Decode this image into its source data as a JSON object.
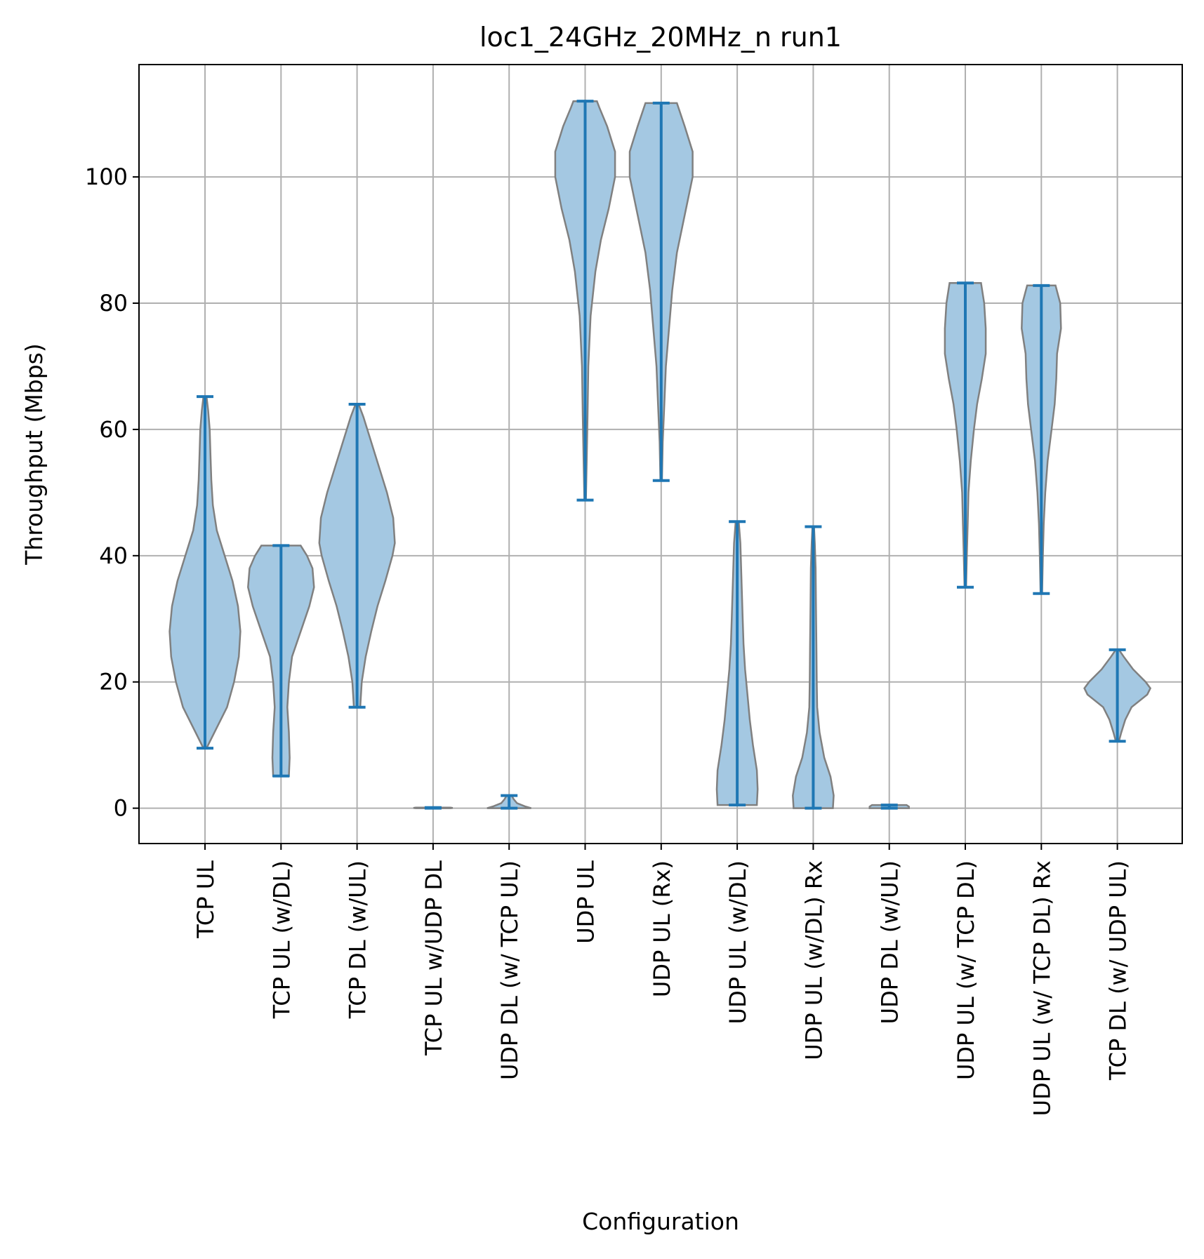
{
  "chart_data": {
    "type": "violin",
    "title": "loc1_24GHz_20MHz_n run1",
    "xlabel": "Configuration",
    "ylabel": "Throughput (Mbps)",
    "ylim": [
      -5.6,
      117.8
    ],
    "yticks": [
      0,
      20,
      40,
      60,
      80,
      100
    ],
    "grid": true,
    "colors": {
      "violin_fill": "#a4c8e2",
      "violin_edge": "#808080",
      "stats": "#1f77b4",
      "grid": "#b0b0b0"
    },
    "categories": [
      "TCP  UL",
      "TCP UL (w/DL)",
      "TCP DL (w/UL)",
      "TCP  UL w/UDP DL",
      "UDP DL (w/ TCP UL)",
      "UDP  UL",
      "UDP  UL (Rx)",
      "UDP UL (w/DL)",
      "UDP UL (w/DL) Rx",
      "UDP DL (w/UL)",
      "UDP UL (w/ TCP DL)",
      "UDP UL (w/ TCP DL) Rx",
      "TCP DL (w/ UDP UL)"
    ],
    "series": [
      {
        "min": 9.5,
        "max": 65.2,
        "density": [
          [
            9.5,
            0.02
          ],
          [
            12,
            0.12
          ],
          [
            16,
            0.28
          ],
          [
            20,
            0.37
          ],
          [
            24,
            0.43
          ],
          [
            28,
            0.45
          ],
          [
            32,
            0.42
          ],
          [
            36,
            0.35
          ],
          [
            40,
            0.25
          ],
          [
            44,
            0.15
          ],
          [
            48,
            0.1
          ],
          [
            52,
            0.08
          ],
          [
            56,
            0.07
          ],
          [
            60,
            0.06
          ],
          [
            63,
            0.04
          ],
          [
            65.2,
            0.02
          ]
        ]
      },
      {
        "min": 5.1,
        "max": 41.6,
        "density": [
          [
            5.1,
            0.1
          ],
          [
            8,
            0.11
          ],
          [
            12,
            0.1
          ],
          [
            16,
            0.08
          ],
          [
            20,
            0.1
          ],
          [
            24,
            0.14
          ],
          [
            28,
            0.25
          ],
          [
            32,
            0.36
          ],
          [
            35,
            0.42
          ],
          [
            38,
            0.4
          ],
          [
            40,
            0.33
          ],
          [
            41.6,
            0.25
          ]
        ]
      },
      {
        "min": 16.0,
        "max": 64.0,
        "density": [
          [
            16,
            0.04
          ],
          [
            20,
            0.06
          ],
          [
            24,
            0.11
          ],
          [
            28,
            0.18
          ],
          [
            32,
            0.26
          ],
          [
            36,
            0.36
          ],
          [
            40,
            0.45
          ],
          [
            42,
            0.48
          ],
          [
            46,
            0.46
          ],
          [
            50,
            0.38
          ],
          [
            54,
            0.28
          ],
          [
            58,
            0.18
          ],
          [
            62,
            0.08
          ],
          [
            64,
            0.02
          ]
        ]
      },
      {
        "min": 0.0,
        "max": 0.1,
        "density": [
          [
            0.0,
            0.22
          ],
          [
            0.05,
            0.25
          ],
          [
            0.1,
            0.22
          ]
        ]
      },
      {
        "min": 0.0,
        "max": 2.0,
        "density": [
          [
            0.0,
            0.28
          ],
          [
            0.3,
            0.2
          ],
          [
            0.8,
            0.1
          ],
          [
            1.4,
            0.06
          ],
          [
            2.0,
            0.03
          ]
        ]
      },
      {
        "min": 48.8,
        "max": 112.0,
        "density": [
          [
            48.8,
            0.01
          ],
          [
            55,
            0.02
          ],
          [
            62,
            0.03
          ],
          [
            70,
            0.04
          ],
          [
            78,
            0.07
          ],
          [
            85,
            0.13
          ],
          [
            90,
            0.2
          ],
          [
            95,
            0.3
          ],
          [
            100,
            0.38
          ],
          [
            104,
            0.38
          ],
          [
            108,
            0.28
          ],
          [
            111,
            0.18
          ],
          [
            112,
            0.15
          ]
        ]
      },
      {
        "min": 51.9,
        "max": 111.7,
        "density": [
          [
            51.9,
            0.01
          ],
          [
            58,
            0.02
          ],
          [
            64,
            0.04
          ],
          [
            70,
            0.06
          ],
          [
            76,
            0.1
          ],
          [
            82,
            0.14
          ],
          [
            88,
            0.2
          ],
          [
            94,
            0.3
          ],
          [
            100,
            0.4
          ],
          [
            104,
            0.4
          ],
          [
            108,
            0.3
          ],
          [
            111.7,
            0.2
          ]
        ]
      },
      {
        "min": 0.5,
        "max": 45.4,
        "density": [
          [
            0.5,
            0.25
          ],
          [
            3,
            0.26
          ],
          [
            6,
            0.25
          ],
          [
            10,
            0.2
          ],
          [
            14,
            0.16
          ],
          [
            18,
            0.13
          ],
          [
            22,
            0.1
          ],
          [
            26,
            0.08
          ],
          [
            30,
            0.07
          ],
          [
            34,
            0.06
          ],
          [
            38,
            0.05
          ],
          [
            42,
            0.04
          ],
          [
            45.4,
            0.02
          ]
        ]
      },
      {
        "min": 0.0,
        "max": 44.6,
        "density": [
          [
            0.0,
            0.25
          ],
          [
            2,
            0.26
          ],
          [
            5,
            0.22
          ],
          [
            8,
            0.14
          ],
          [
            12,
            0.08
          ],
          [
            16,
            0.05
          ],
          [
            20,
            0.045
          ],
          [
            26,
            0.04
          ],
          [
            32,
            0.035
          ],
          [
            38,
            0.03
          ],
          [
            42,
            0.02
          ],
          [
            44.6,
            0.01
          ]
        ]
      },
      {
        "min": 0.0,
        "max": 0.5,
        "density": [
          [
            0.0,
            0.25
          ],
          [
            0.25,
            0.25
          ],
          [
            0.5,
            0.22
          ]
        ]
      },
      {
        "min": 35.0,
        "max": 83.2,
        "density": [
          [
            35,
            0.01
          ],
          [
            40,
            0.02
          ],
          [
            45,
            0.03
          ],
          [
            50,
            0.04
          ],
          [
            55,
            0.07
          ],
          [
            60,
            0.11
          ],
          [
            64,
            0.15
          ],
          [
            68,
            0.21
          ],
          [
            72,
            0.26
          ],
          [
            76,
            0.26
          ],
          [
            80,
            0.24
          ],
          [
            83.2,
            0.2
          ]
        ]
      },
      {
        "min": 34.0,
        "max": 82.8,
        "density": [
          [
            34,
            0.01
          ],
          [
            40,
            0.02
          ],
          [
            45,
            0.03
          ],
          [
            50,
            0.05
          ],
          [
            55,
            0.08
          ],
          [
            60,
            0.13
          ],
          [
            64,
            0.17
          ],
          [
            68,
            0.19
          ],
          [
            72,
            0.2
          ],
          [
            76,
            0.25
          ],
          [
            80,
            0.24
          ],
          [
            82.8,
            0.18
          ]
        ]
      },
      {
        "min": 10.6,
        "max": 25.1,
        "density": [
          [
            10.6,
            0.02
          ],
          [
            12,
            0.05
          ],
          [
            14,
            0.1
          ],
          [
            16,
            0.18
          ],
          [
            18,
            0.38
          ],
          [
            19,
            0.42
          ],
          [
            20,
            0.36
          ],
          [
            22,
            0.2
          ],
          [
            24,
            0.08
          ],
          [
            25.1,
            0.02
          ]
        ]
      }
    ]
  }
}
